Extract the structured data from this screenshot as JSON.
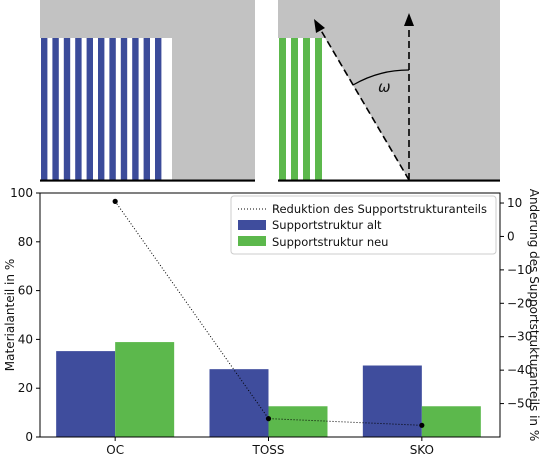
{
  "diagrams": {
    "left": {
      "stripe_color": "#3b4b9a",
      "stripe_count": 11
    },
    "right": {
      "stripe_color": "#5cb84c",
      "stripe_count": 4,
      "angle_label": "ω"
    },
    "background_color": "#c2c2c2"
  },
  "chart_data": {
    "type": "bar",
    "categories": [
      "OC",
      "TOSS",
      "SKO"
    ],
    "series": [
      {
        "name": "Supportstruktur alt",
        "values": [
          35.2,
          27.8,
          29.3
        ],
        "color": "#3f4d9d"
      },
      {
        "name": "Supportstruktur neu",
        "values": [
          38.9,
          12.6,
          12.6
        ],
        "color": "#5cb84c"
      }
    ],
    "line_series": {
      "name": "Reduktion des Supportstrukturanteils",
      "values": [
        10.5,
        -54.5,
        -56.5
      ],
      "axis": "right",
      "style": "dotted",
      "color": "#000000"
    },
    "ylabel": "Materialanteil in %",
    "ylabel_right": "Änderung des Supportstrukturanteils in %",
    "ylim": [
      0,
      100
    ],
    "ylim_right": [
      -60,
      13
    ],
    "yticks": [
      "0",
      "20",
      "40",
      "60",
      "80",
      "100"
    ],
    "yticks_right": [
      "10",
      "0",
      "−10",
      "−20",
      "−30",
      "−40",
      "−50"
    ],
    "yticks_right_values": [
      10,
      0,
      -10,
      -20,
      -30,
      -40,
      -50
    ],
    "legend_position": "top-right",
    "grid": false
  }
}
